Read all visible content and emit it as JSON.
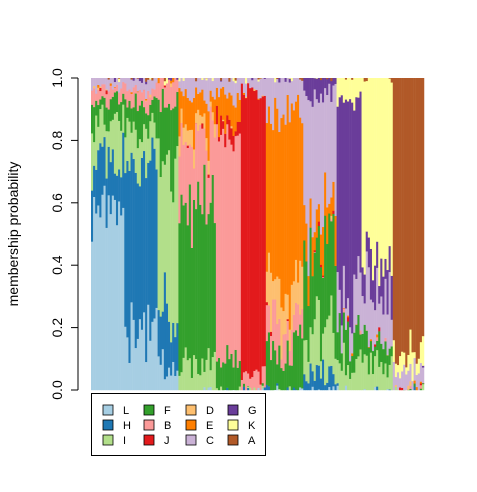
{
  "chart_data": {
    "type": "bar",
    "stacked": true,
    "ylabel": "membership probability",
    "ylim": [
      0,
      1
    ],
    "yticks": [
      "0.0",
      "0.2",
      "0.4",
      "0.6",
      "0.8",
      "1.0"
    ],
    "n_individuals": 160,
    "legend_position": "bottom-left",
    "clusters": [
      "L",
      "H",
      "I",
      "F",
      "B",
      "J",
      "D",
      "E",
      "C",
      "G",
      "K",
      "A"
    ],
    "colors": {
      "L": "#A6CEE3",
      "H": "#1F78B4",
      "I": "#B2DF8A",
      "F": "#33A02C",
      "B": "#FB9A99",
      "J": "#E31A1C",
      "D": "#FDBF6F",
      "E": "#FF7F00",
      "C": "#CAB2D6",
      "G": "#6A3D9A",
      "K": "#FFFF99",
      "A": "#B15928"
    },
    "groups": [
      {
        "cluster": "L",
        "count": 16,
        "mix": {
          "L": 0.58,
          "H": 0.15,
          "I": 0.12,
          "F": 0.08,
          "B": 0.04,
          "C": 0.03
        }
      },
      {
        "cluster": "H",
        "count": 16,
        "mix": {
          "H": 0.52,
          "L": 0.18,
          "I": 0.12,
          "F": 0.1,
          "B": 0.05,
          "C": 0.03
        }
      },
      {
        "cluster": "I",
        "count": 10,
        "mix": {
          "I": 0.45,
          "H": 0.2,
          "F": 0.2,
          "L": 0.08,
          "B": 0.07
        }
      },
      {
        "cluster": "F",
        "count": 18,
        "mix": {
          "F": 0.5,
          "B": 0.22,
          "E": 0.1,
          "I": 0.08,
          "C": 0.06,
          "D": 0.04
        }
      },
      {
        "cluster": "B",
        "count": 12,
        "mix": {
          "B": 0.68,
          "F": 0.12,
          "E": 0.1,
          "C": 0.06,
          "J": 0.04
        }
      },
      {
        "cluster": "J",
        "count": 12,
        "mix": {
          "J": 0.92,
          "B": 0.04,
          "C": 0.04
        }
      },
      {
        "cluster": "E",
        "count": 18,
        "mix": {
          "E": 0.55,
          "D": 0.12,
          "F": 0.15,
          "C": 0.1,
          "B": 0.08
        }
      },
      {
        "cluster": "C",
        "count": 16,
        "mix": {
          "C": 0.4,
          "F": 0.25,
          "I": 0.15,
          "E": 0.1,
          "G": 0.05,
          "H": 0.05
        }
      },
      {
        "cluster": "G",
        "count": 12,
        "mix": {
          "G": 0.6,
          "C": 0.15,
          "F": 0.1,
          "I": 0.08,
          "K": 0.07
        }
      },
      {
        "cluster": "K",
        "count": 15,
        "mix": {
          "K": 0.55,
          "C": 0.2,
          "G": 0.1,
          "I": 0.08,
          "F": 0.07
        }
      },
      {
        "cluster": "A",
        "count": 15,
        "mix": {
          "A": 0.88,
          "K": 0.06,
          "C": 0.06
        }
      }
    ]
  }
}
